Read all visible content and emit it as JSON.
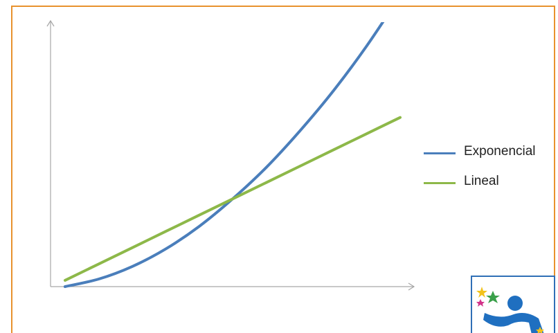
{
  "chart_data": {
    "type": "line",
    "title": "",
    "xlabel": "",
    "ylabel": "",
    "grid": false,
    "legend_position": "right",
    "x": [
      0,
      1,
      2,
      3,
      4,
      5,
      6,
      7,
      8,
      9,
      10
    ],
    "xlim": [
      0,
      10
    ],
    "ylim": [
      0,
      100
    ],
    "series": [
      {
        "name": "Exponencial",
        "color": "#4a7ebb",
        "values": [
          0,
          3,
          8,
          15,
          24,
          35,
          47.5,
          62,
          78,
          96,
          116
        ]
      },
      {
        "name": "Lineal",
        "color": "#8db849",
        "values": [
          2.5,
          9,
          15.5,
          22,
          28.5,
          35,
          41.5,
          48,
          54.5,
          61,
          67.5
        ]
      }
    ]
  },
  "colors": {
    "frame_border": "#e8912d",
    "axis": "#a6a6a6",
    "logo_border": "#2f6fb6"
  },
  "logo": {
    "icon": "stars-person-logo-icon"
  }
}
